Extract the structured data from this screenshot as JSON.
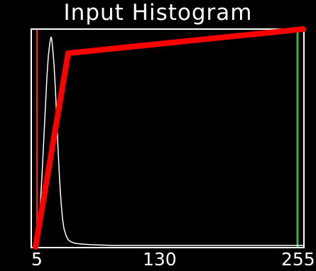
{
  "window": {
    "title": "Input Histogram"
  },
  "axis": {
    "ticks": [
      "5",
      "130",
      "255"
    ]
  },
  "colors": {
    "background": "#000000",
    "frame": "#ffffff",
    "histogram": "#ffffff",
    "lower_marker": "#ff2020",
    "upper_marker": "#3fb43f",
    "mapping_curve": "#ff0000"
  },
  "controls": {
    "lower_marker_value": 5,
    "upper_marker_value": 255,
    "curve_points": [
      {
        "x": 5,
        "y": 0
      },
      {
        "x": 30,
        "y": 0.88
      },
      {
        "x": 255,
        "y": 1.0
      }
    ]
  }
}
